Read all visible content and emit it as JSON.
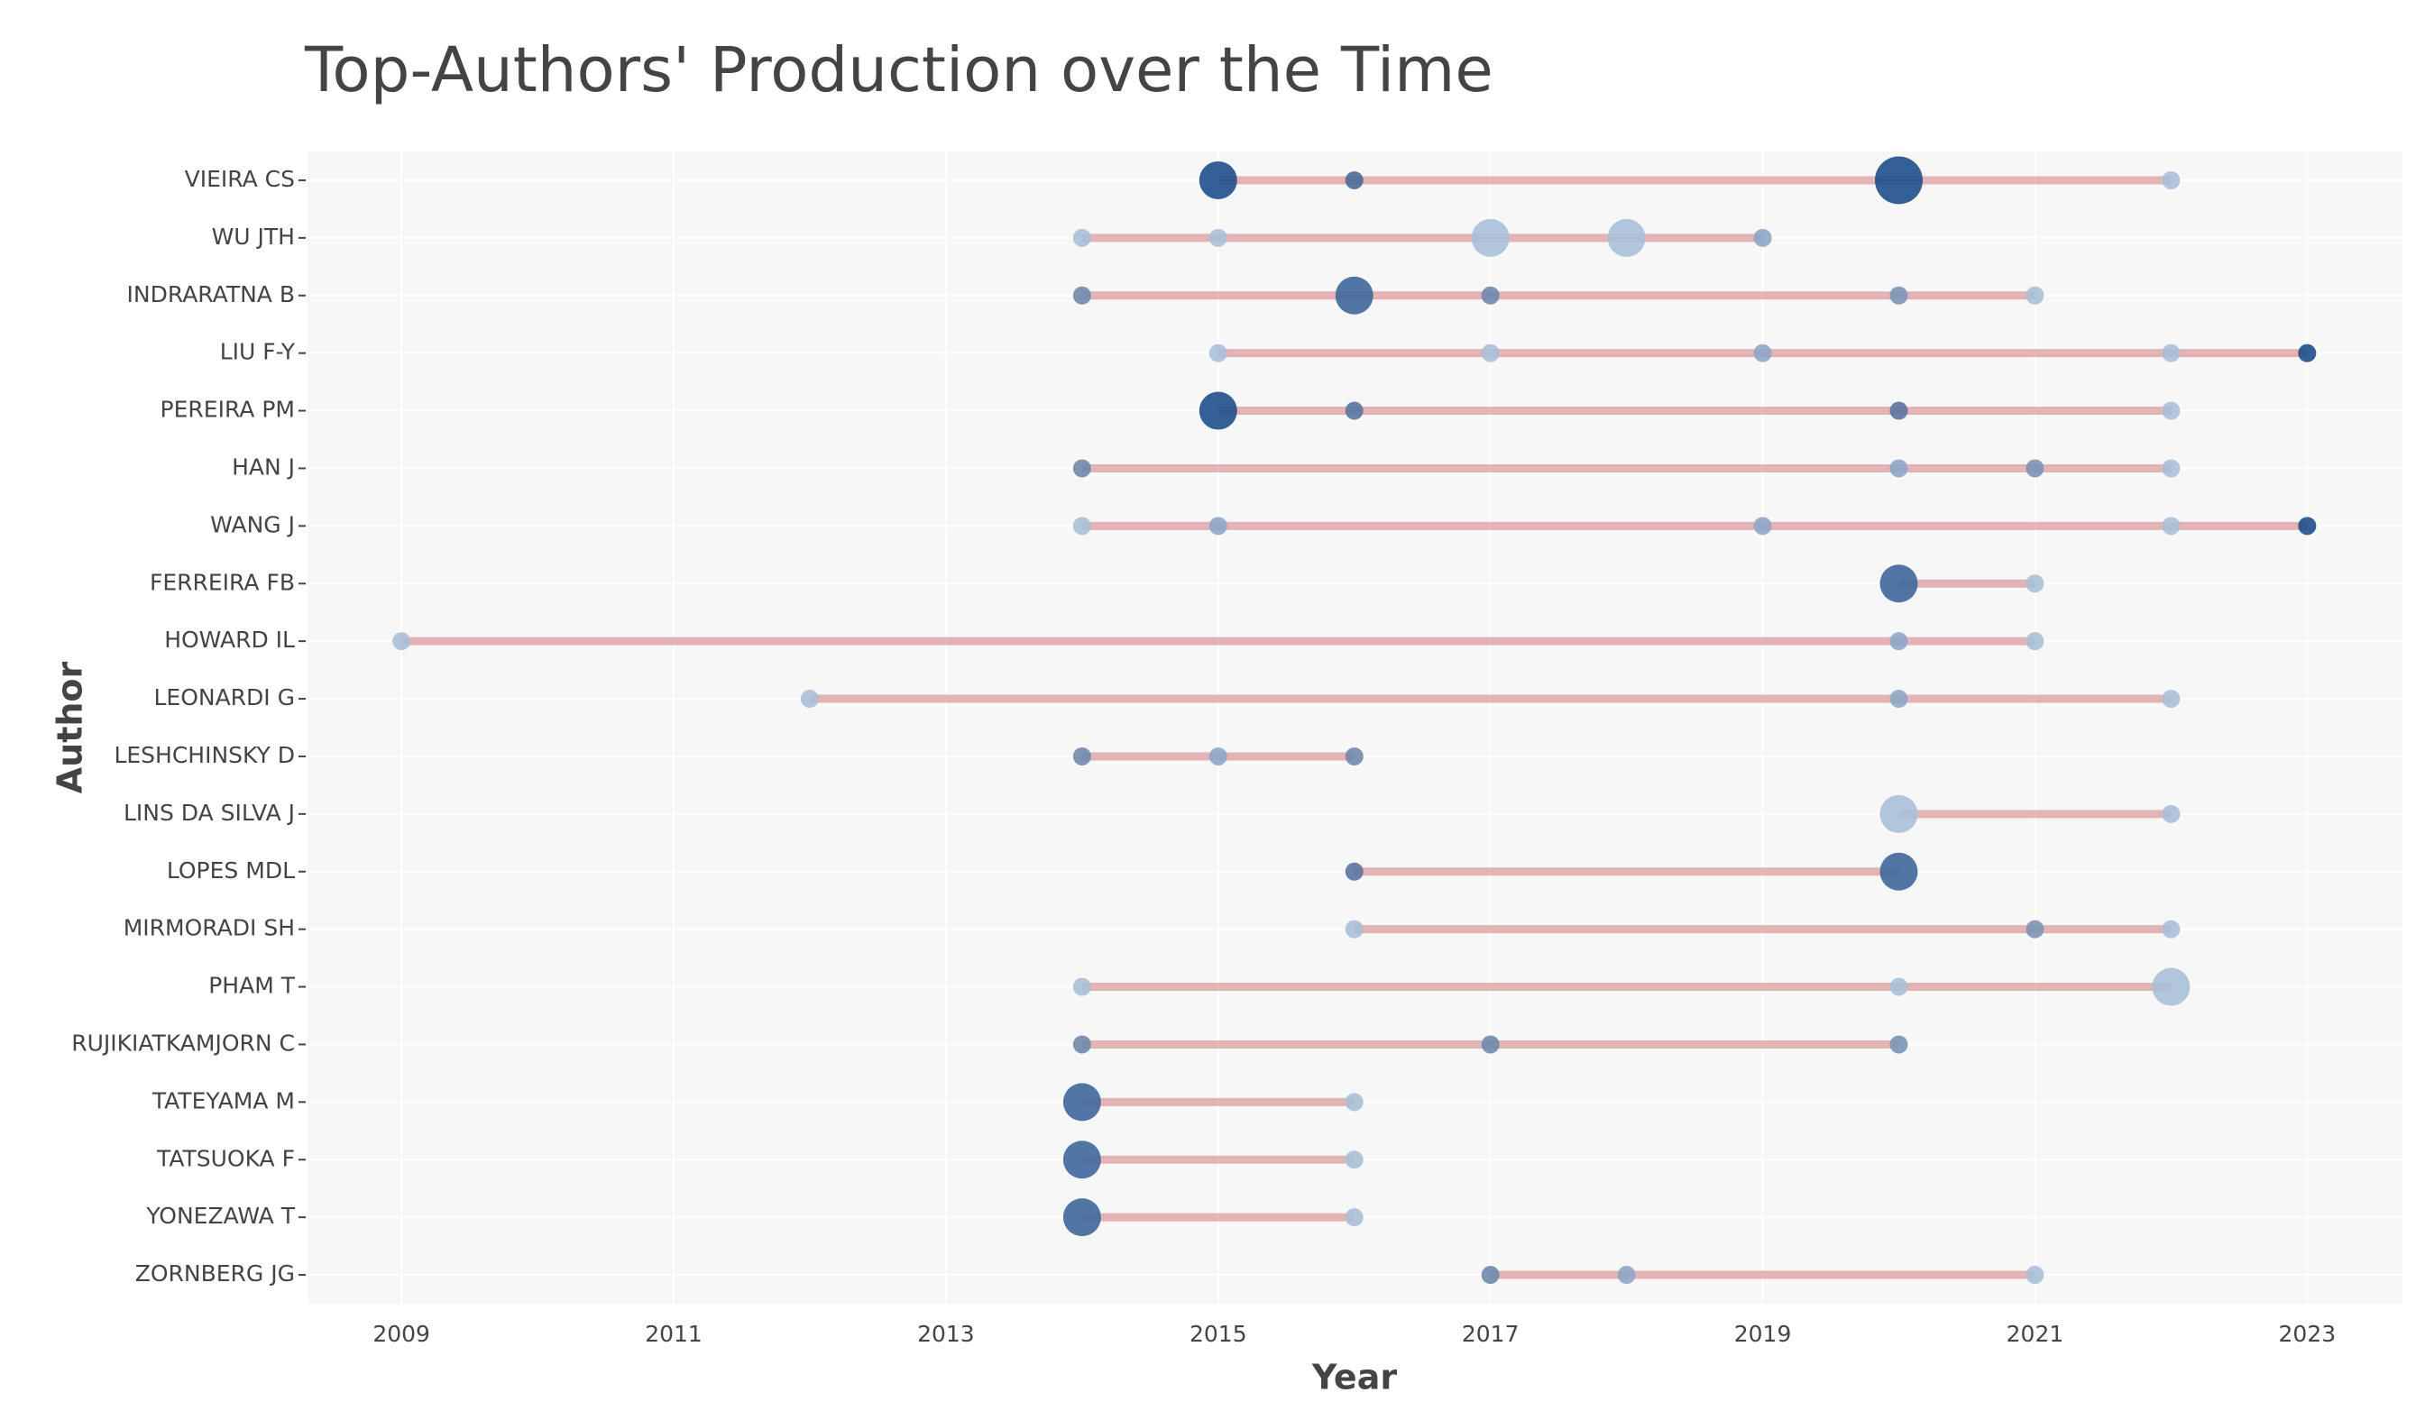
{
  "chart_data": {
    "type": "timeline",
    "title": "Top-Authors' Production over the Time",
    "x_label": "Year",
    "y_label": "Author",
    "xlim": [
      2008.31,
      2023.7
    ],
    "xticks": [
      2009,
      2011,
      2013,
      2015,
      2017,
      2019,
      2021,
      2023
    ],
    "grid": true,
    "line_color": "#d98e92",
    "authors": [
      {
        "name": "VIEIRA CS",
        "points": [
          {
            "year": 2015,
            "articles": 3,
            "color": "#1f4e8c"
          },
          {
            "year": 2016,
            "articles": 1,
            "color": "#4a6a98"
          },
          {
            "year": 2020,
            "articles": 4,
            "color": "#1f4e8c"
          },
          {
            "year": 2022,
            "articles": 1,
            "color": "#a8bfd8"
          }
        ]
      },
      {
        "name": "WU JTH",
        "points": [
          {
            "year": 2014,
            "articles": 1,
            "color": "#a8bfd8"
          },
          {
            "year": 2015,
            "articles": 1,
            "color": "#a8bfd8"
          },
          {
            "year": 2017,
            "articles": 3,
            "color": "#a8bfd8"
          },
          {
            "year": 2018,
            "articles": 3,
            "color": "#a8bfd8"
          },
          {
            "year": 2019,
            "articles": 1,
            "color": "#8ea6c6"
          }
        ]
      },
      {
        "name": "INDRARATNA B",
        "points": [
          {
            "year": 2014,
            "articles": 1,
            "color": "#6f88ad"
          },
          {
            "year": 2016,
            "articles": 3,
            "color": "#3e679c"
          },
          {
            "year": 2017,
            "articles": 1,
            "color": "#6f88ad"
          },
          {
            "year": 2020,
            "articles": 1,
            "color": "#7c93b6"
          },
          {
            "year": 2021,
            "articles": 1,
            "color": "#a8bfd8"
          }
        ]
      },
      {
        "name": "LIU F-Y",
        "points": [
          {
            "year": 2015,
            "articles": 1,
            "color": "#a8bfd8"
          },
          {
            "year": 2017,
            "articles": 1,
            "color": "#a8bfd8"
          },
          {
            "year": 2019,
            "articles": 1,
            "color": "#8ea6c6"
          },
          {
            "year": 2022,
            "articles": 1,
            "color": "#a8bfd8"
          },
          {
            "year": 2023,
            "articles": 1,
            "color": "#1f4e8c"
          }
        ]
      },
      {
        "name": "PEREIRA PM",
        "points": [
          {
            "year": 2015,
            "articles": 3,
            "color": "#1f4e8c"
          },
          {
            "year": 2016,
            "articles": 1,
            "color": "#5a74a0"
          },
          {
            "year": 2020,
            "articles": 1,
            "color": "#5a74a0"
          },
          {
            "year": 2022,
            "articles": 1,
            "color": "#a8bfd8"
          }
        ]
      },
      {
        "name": "HAN J",
        "points": [
          {
            "year": 2014,
            "articles": 1,
            "color": "#6f88ad"
          },
          {
            "year": 2020,
            "articles": 1,
            "color": "#8ea6c6"
          },
          {
            "year": 2021,
            "articles": 1,
            "color": "#7c93b6"
          },
          {
            "year": 2022,
            "articles": 1,
            "color": "#a8bfd8"
          }
        ]
      },
      {
        "name": "WANG J",
        "points": [
          {
            "year": 2014,
            "articles": 1,
            "color": "#a8bfd8"
          },
          {
            "year": 2015,
            "articles": 1,
            "color": "#8ea6c6"
          },
          {
            "year": 2019,
            "articles": 1,
            "color": "#8ea6c6"
          },
          {
            "year": 2022,
            "articles": 1,
            "color": "#a8bfd8"
          },
          {
            "year": 2023,
            "articles": 1,
            "color": "#1f4e8c"
          }
        ]
      },
      {
        "name": "FERREIRA FB",
        "points": [
          {
            "year": 2020,
            "articles": 3,
            "color": "#3e679c"
          },
          {
            "year": 2021,
            "articles": 1,
            "color": "#a8bfd8"
          }
        ]
      },
      {
        "name": "HOWARD IL",
        "points": [
          {
            "year": 2009,
            "articles": 1,
            "color": "#a8bfd8"
          },
          {
            "year": 2020,
            "articles": 1,
            "color": "#8ea6c6"
          },
          {
            "year": 2021,
            "articles": 1,
            "color": "#a8bfd8"
          }
        ]
      },
      {
        "name": "LEONARDI G",
        "points": [
          {
            "year": 2012,
            "articles": 1,
            "color": "#a8bfd8"
          },
          {
            "year": 2020,
            "articles": 1,
            "color": "#8ea6c6"
          },
          {
            "year": 2022,
            "articles": 1,
            "color": "#a8bfd8"
          }
        ]
      },
      {
        "name": "LESHCHINSKY D",
        "points": [
          {
            "year": 2014,
            "articles": 1,
            "color": "#6f88ad"
          },
          {
            "year": 2015,
            "articles": 1,
            "color": "#8ea6c6"
          },
          {
            "year": 2016,
            "articles": 1,
            "color": "#6f88ad"
          }
        ]
      },
      {
        "name": "LINS DA SILVA J",
        "points": [
          {
            "year": 2020,
            "articles": 3,
            "color": "#a8bfd8"
          },
          {
            "year": 2022,
            "articles": 1,
            "color": "#a8bfd8"
          }
        ]
      },
      {
        "name": "LOPES MDL",
        "points": [
          {
            "year": 2016,
            "articles": 1,
            "color": "#5a74a0"
          },
          {
            "year": 2020,
            "articles": 3,
            "color": "#3e679c"
          }
        ]
      },
      {
        "name": "MIRMORADI SH",
        "points": [
          {
            "year": 2016,
            "articles": 1,
            "color": "#a8bfd8"
          },
          {
            "year": 2021,
            "articles": 1,
            "color": "#7c93b6"
          },
          {
            "year": 2022,
            "articles": 1,
            "color": "#a8bfd8"
          }
        ]
      },
      {
        "name": "PHAM T",
        "points": [
          {
            "year": 2014,
            "articles": 1,
            "color": "#a8bfd8"
          },
          {
            "year": 2020,
            "articles": 1,
            "color": "#a8bfd8"
          },
          {
            "year": 2022,
            "articles": 3,
            "color": "#a8bfd8"
          }
        ]
      },
      {
        "name": "RUJIKIATKAMJORN C",
        "points": [
          {
            "year": 2014,
            "articles": 1,
            "color": "#6f88ad"
          },
          {
            "year": 2017,
            "articles": 1,
            "color": "#6f88ad"
          },
          {
            "year": 2020,
            "articles": 1,
            "color": "#7c93b6"
          }
        ]
      },
      {
        "name": "TATEYAMA M",
        "points": [
          {
            "year": 2014,
            "articles": 3,
            "color": "#3e679c"
          },
          {
            "year": 2016,
            "articles": 1,
            "color": "#a8bfd8"
          }
        ]
      },
      {
        "name": "TATSUOKA F",
        "points": [
          {
            "year": 2014,
            "articles": 3,
            "color": "#3e679c"
          },
          {
            "year": 2016,
            "articles": 1,
            "color": "#a8bfd8"
          }
        ]
      },
      {
        "name": "YONEZAWA T",
        "points": [
          {
            "year": 2014,
            "articles": 3,
            "color": "#3e679c"
          },
          {
            "year": 2016,
            "articles": 1,
            "color": "#a8bfd8"
          }
        ]
      },
      {
        "name": "ZORNBERG JG",
        "points": [
          {
            "year": 2017,
            "articles": 1,
            "color": "#6f88ad"
          },
          {
            "year": 2018,
            "articles": 1,
            "color": "#8ea6c6"
          },
          {
            "year": 2021,
            "articles": 1,
            "color": "#a8bfd8"
          }
        ]
      }
    ]
  }
}
